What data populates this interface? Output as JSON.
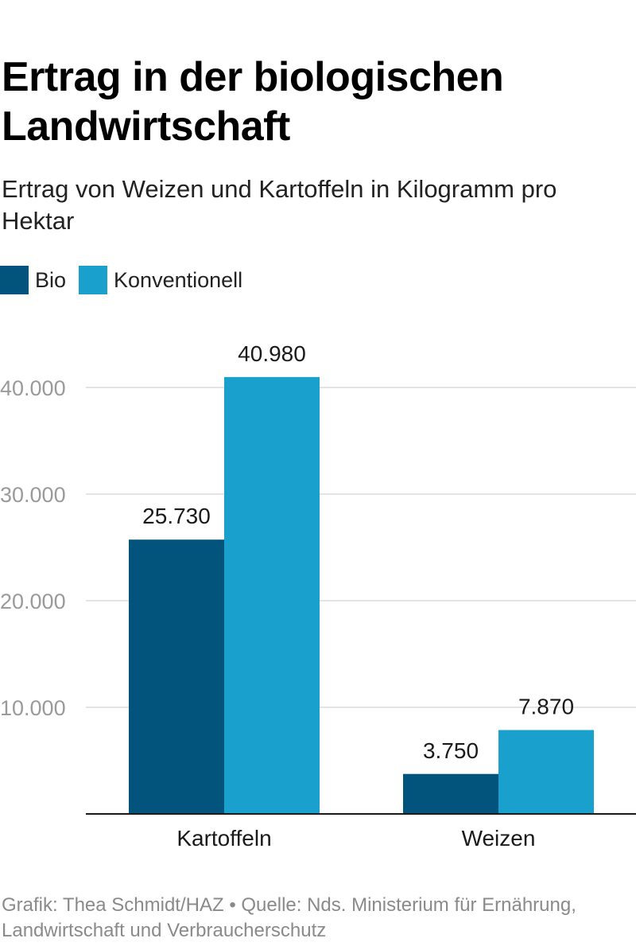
{
  "title": "Ertrag in der biologischen Landwirtschaft",
  "subtitle": "Ertrag von Weizen und Kartoffeln in Kilogramm pro Hektar",
  "source": "Grafik: Thea Schmidt/HAZ • Quelle: Nds. Ministerium für Ernährung, Landwirtschaft und Verbraucherschutz",
  "colors": {
    "Bio": "#03547c",
    "Konventionell": "#19a0cd"
  },
  "chart_data": {
    "type": "bar",
    "title": "Ertrag in der biologischen Landwirtschaft",
    "subtitle": "Ertrag von Weizen und Kartoffeln in Kilogramm pro Hektar",
    "categories": [
      "Kartoffeln",
      "Weizen"
    ],
    "series": [
      {
        "name": "Bio",
        "values": [
          25730,
          3750
        ],
        "labels": [
          "25.730",
          "3.750"
        ]
      },
      {
        "name": "Konventionell",
        "values": [
          40980,
          7870
        ],
        "labels": [
          "40.980",
          "7.870"
        ]
      }
    ],
    "yticks": [
      10000,
      20000,
      30000,
      40000
    ],
    "ytick_labels": [
      "10.000",
      "20.000",
      "30.000",
      "40.000"
    ],
    "ylim": [
      0,
      45000
    ],
    "xlabel": "",
    "ylabel": "",
    "grid": true,
    "legend": "top-left"
  }
}
